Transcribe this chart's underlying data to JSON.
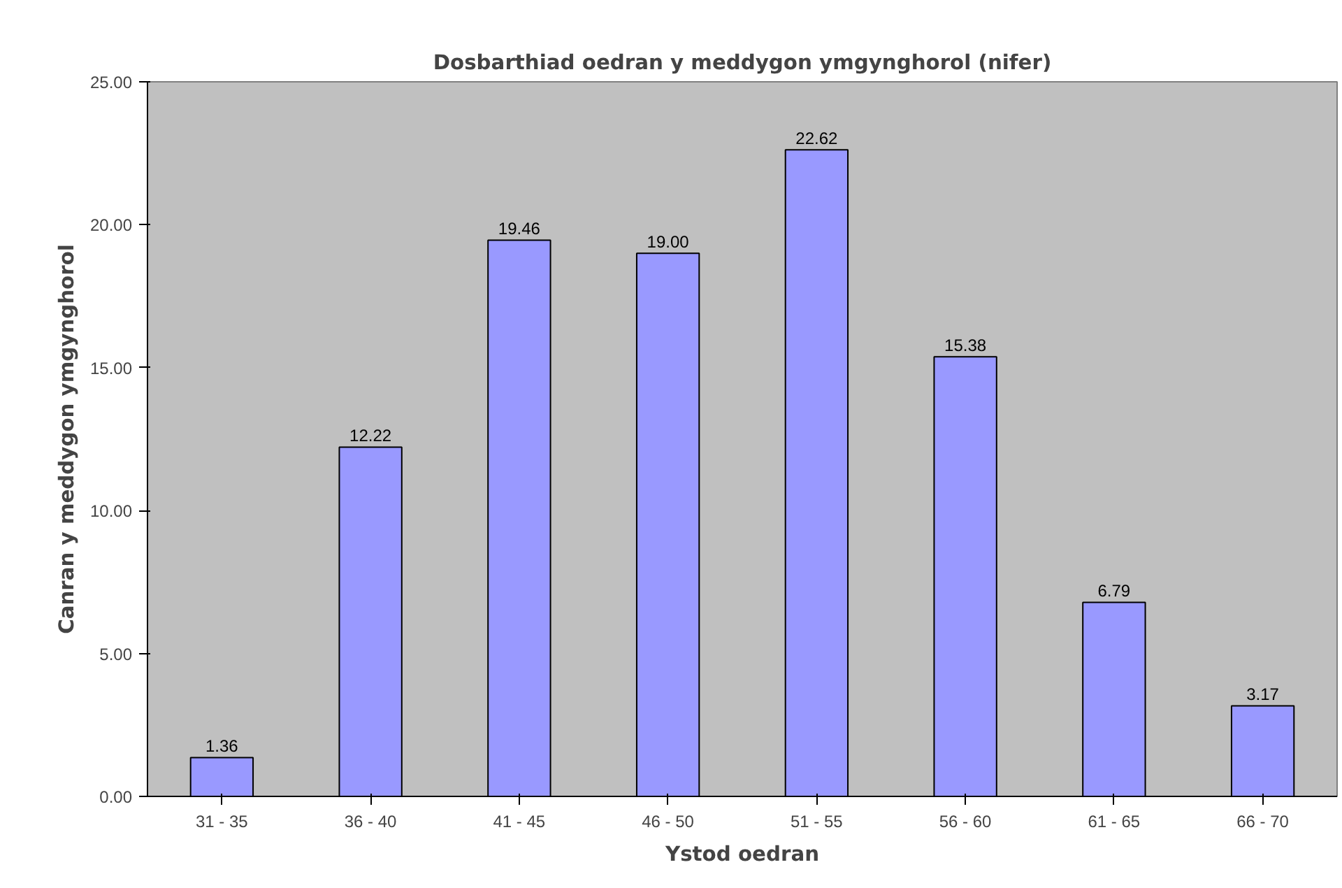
{
  "chart_data": {
    "type": "bar",
    "title": "Dosbarthiad oedran y meddygon ymgynghorol (nifer)",
    "xlabel": "Ystod oedran",
    "ylabel": "Canran y meddygon ymgynghorol",
    "categories": [
      "31 - 35",
      "36 - 40",
      "41 - 45",
      "46 - 50",
      "51 - 55",
      "56 - 60",
      "61 - 65",
      "66 - 70"
    ],
    "values": [
      1.36,
      12.22,
      19.46,
      19.0,
      22.62,
      15.38,
      6.79,
      3.17
    ],
    "value_labels": [
      "1.36",
      "12.22",
      "19.46",
      "19.00",
      "22.62",
      "15.38",
      "6.79",
      "3.17"
    ],
    "color": "#9999ff",
    "ylim": [
      0,
      25
    ],
    "yticks": [
      {
        "value": 0,
        "label": "0.00"
      },
      {
        "value": 5,
        "label": "5.00"
      },
      {
        "value": 10,
        "label": "10.00"
      },
      {
        "value": 15,
        "label": "15.00"
      },
      {
        "value": 20,
        "label": "20.00"
      },
      {
        "value": 25,
        "label": "25.00"
      }
    ],
    "grid": false
  }
}
